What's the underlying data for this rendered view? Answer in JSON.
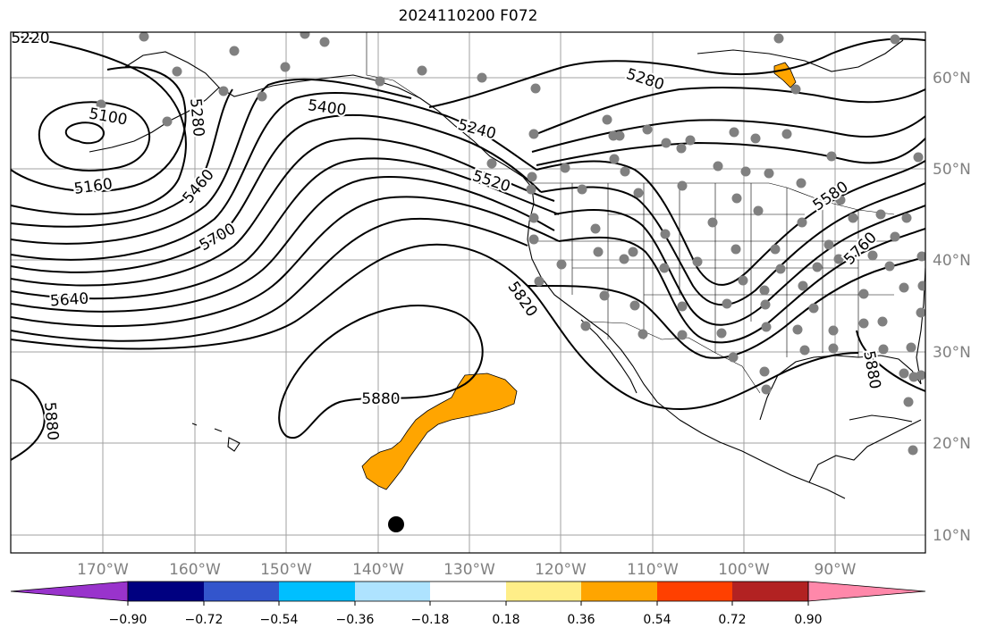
{
  "title": "2024110200 F072",
  "longitude_labels": [
    "170°W",
    "160°W",
    "150°W",
    "140°W",
    "130°W",
    "120°W",
    "110°W",
    "100°W",
    "90°W"
  ],
  "latitude_labels": [
    "60°N",
    "50°N",
    "40°N",
    "30°N",
    "20°N",
    "10°N"
  ],
  "contour_labels": [
    "5220",
    "5100",
    "5160",
    "5280",
    "5400",
    "5460",
    "5700",
    "5640",
    "5240",
    "5520",
    "5820",
    "5880",
    "5280",
    "5580",
    "5760",
    "5880",
    "5880"
  ],
  "colorbar": {
    "tick_labels": [
      "−0.90",
      "−0.72",
      "−0.54",
      "−0.36",
      "−0.18",
      "0.18",
      "0.36",
      "0.54",
      "0.72",
      "0.90"
    ],
    "colors": [
      "#9933cc",
      "#000080",
      "#3355cc",
      "#00bfff",
      "#aee3ff",
      "#ffffff",
      "#ffee88",
      "#ffa500",
      "#ff4000",
      "#b22222",
      "#ff88aa"
    ]
  },
  "colors": {
    "grid": "#a0a0a0",
    "contour": "#000000",
    "station_dot": "#808080",
    "positive_fill": "#ffa500",
    "marker": "#000000"
  }
}
